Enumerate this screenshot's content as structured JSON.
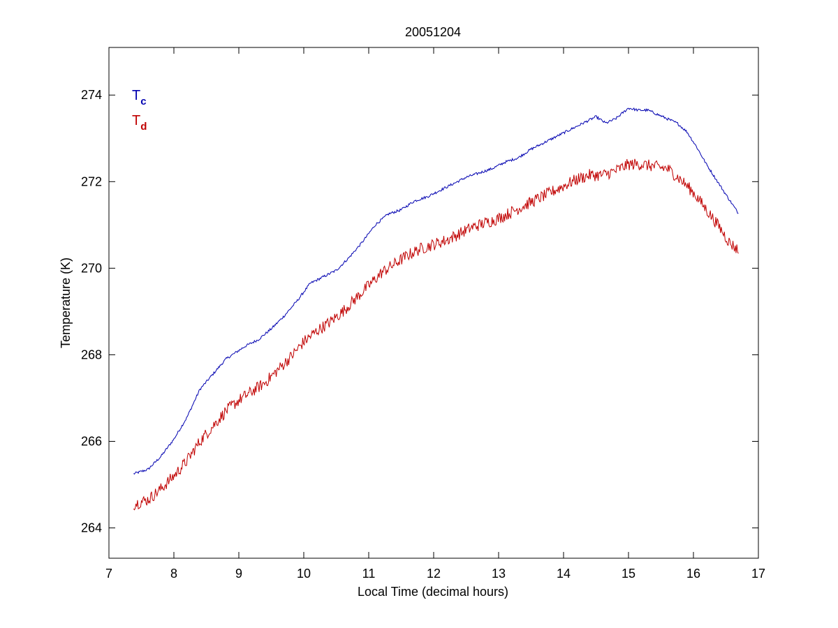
{
  "chart_data": {
    "type": "line",
    "title": "20051204",
    "xlabel": "Local Time (decimal hours)",
    "ylabel": "Temperature (K)",
    "xlim": [
      7,
      17
    ],
    "ylim": [
      263.3,
      275.1
    ],
    "xticks": [
      7,
      8,
      9,
      10,
      11,
      12,
      13,
      14,
      15,
      16,
      17
    ],
    "yticks": [
      264,
      266,
      268,
      270,
      272,
      274
    ],
    "grid": false,
    "legend_position": "top-left",
    "series": [
      {
        "name": "T",
        "subscript": "c",
        "color": "#0000b0",
        "noise": 0.03,
        "x": [
          7.38,
          7.6,
          7.8,
          8.0,
          8.2,
          8.4,
          8.6,
          8.8,
          8.95,
          9.1,
          9.3,
          9.5,
          9.7,
          9.9,
          10.1,
          10.3,
          10.5,
          10.7,
          10.9,
          11.1,
          11.3,
          11.5,
          11.7,
          11.9,
          12.1,
          12.3,
          12.5,
          12.7,
          12.9,
          13.1,
          13.3,
          13.5,
          13.7,
          13.9,
          14.1,
          14.3,
          14.5,
          14.65,
          14.8,
          15.0,
          15.15,
          15.3,
          15.45,
          15.6,
          15.75,
          15.9,
          16.05,
          16.2,
          16.35,
          16.5,
          16.7
        ],
        "y": [
          265.25,
          265.35,
          265.65,
          266.05,
          266.55,
          267.2,
          267.55,
          267.9,
          268.05,
          268.2,
          268.35,
          268.6,
          268.9,
          269.25,
          269.65,
          269.8,
          269.95,
          270.25,
          270.6,
          271.0,
          271.25,
          271.35,
          271.55,
          271.65,
          271.8,
          271.95,
          272.1,
          272.2,
          272.3,
          272.45,
          272.55,
          272.75,
          272.9,
          273.05,
          273.2,
          273.35,
          273.5,
          273.35,
          273.45,
          273.7,
          273.65,
          273.65,
          273.55,
          273.45,
          273.35,
          273.15,
          272.8,
          272.4,
          272.05,
          271.7,
          271.25
        ]
      },
      {
        "name": "T",
        "subscript": "d",
        "color": "#c00000",
        "noise": 0.14,
        "x": [
          7.38,
          7.6,
          7.8,
          8.0,
          8.2,
          8.4,
          8.6,
          8.8,
          9.0,
          9.2,
          9.4,
          9.6,
          9.8,
          10.0,
          10.2,
          10.4,
          10.6,
          10.8,
          11.0,
          11.2,
          11.4,
          11.6,
          11.8,
          12.0,
          12.2,
          12.4,
          12.6,
          12.8,
          13.0,
          13.2,
          13.4,
          13.6,
          13.8,
          14.0,
          14.2,
          14.4,
          14.6,
          14.8,
          15.0,
          15.2,
          15.4,
          15.6,
          15.8,
          16.0,
          16.2,
          16.4,
          16.55,
          16.7
        ],
        "y": [
          264.55,
          264.65,
          264.9,
          265.2,
          265.55,
          266.0,
          266.35,
          266.7,
          266.95,
          267.15,
          267.35,
          267.65,
          267.95,
          268.3,
          268.55,
          268.75,
          269.0,
          269.3,
          269.6,
          269.9,
          270.1,
          270.3,
          270.45,
          270.55,
          270.65,
          270.8,
          270.95,
          271.05,
          271.15,
          271.3,
          271.45,
          271.6,
          271.75,
          271.9,
          272.05,
          272.15,
          272.15,
          272.25,
          272.4,
          272.4,
          272.35,
          272.3,
          272.05,
          271.75,
          271.35,
          270.95,
          270.6,
          270.4
        ]
      }
    ]
  }
}
